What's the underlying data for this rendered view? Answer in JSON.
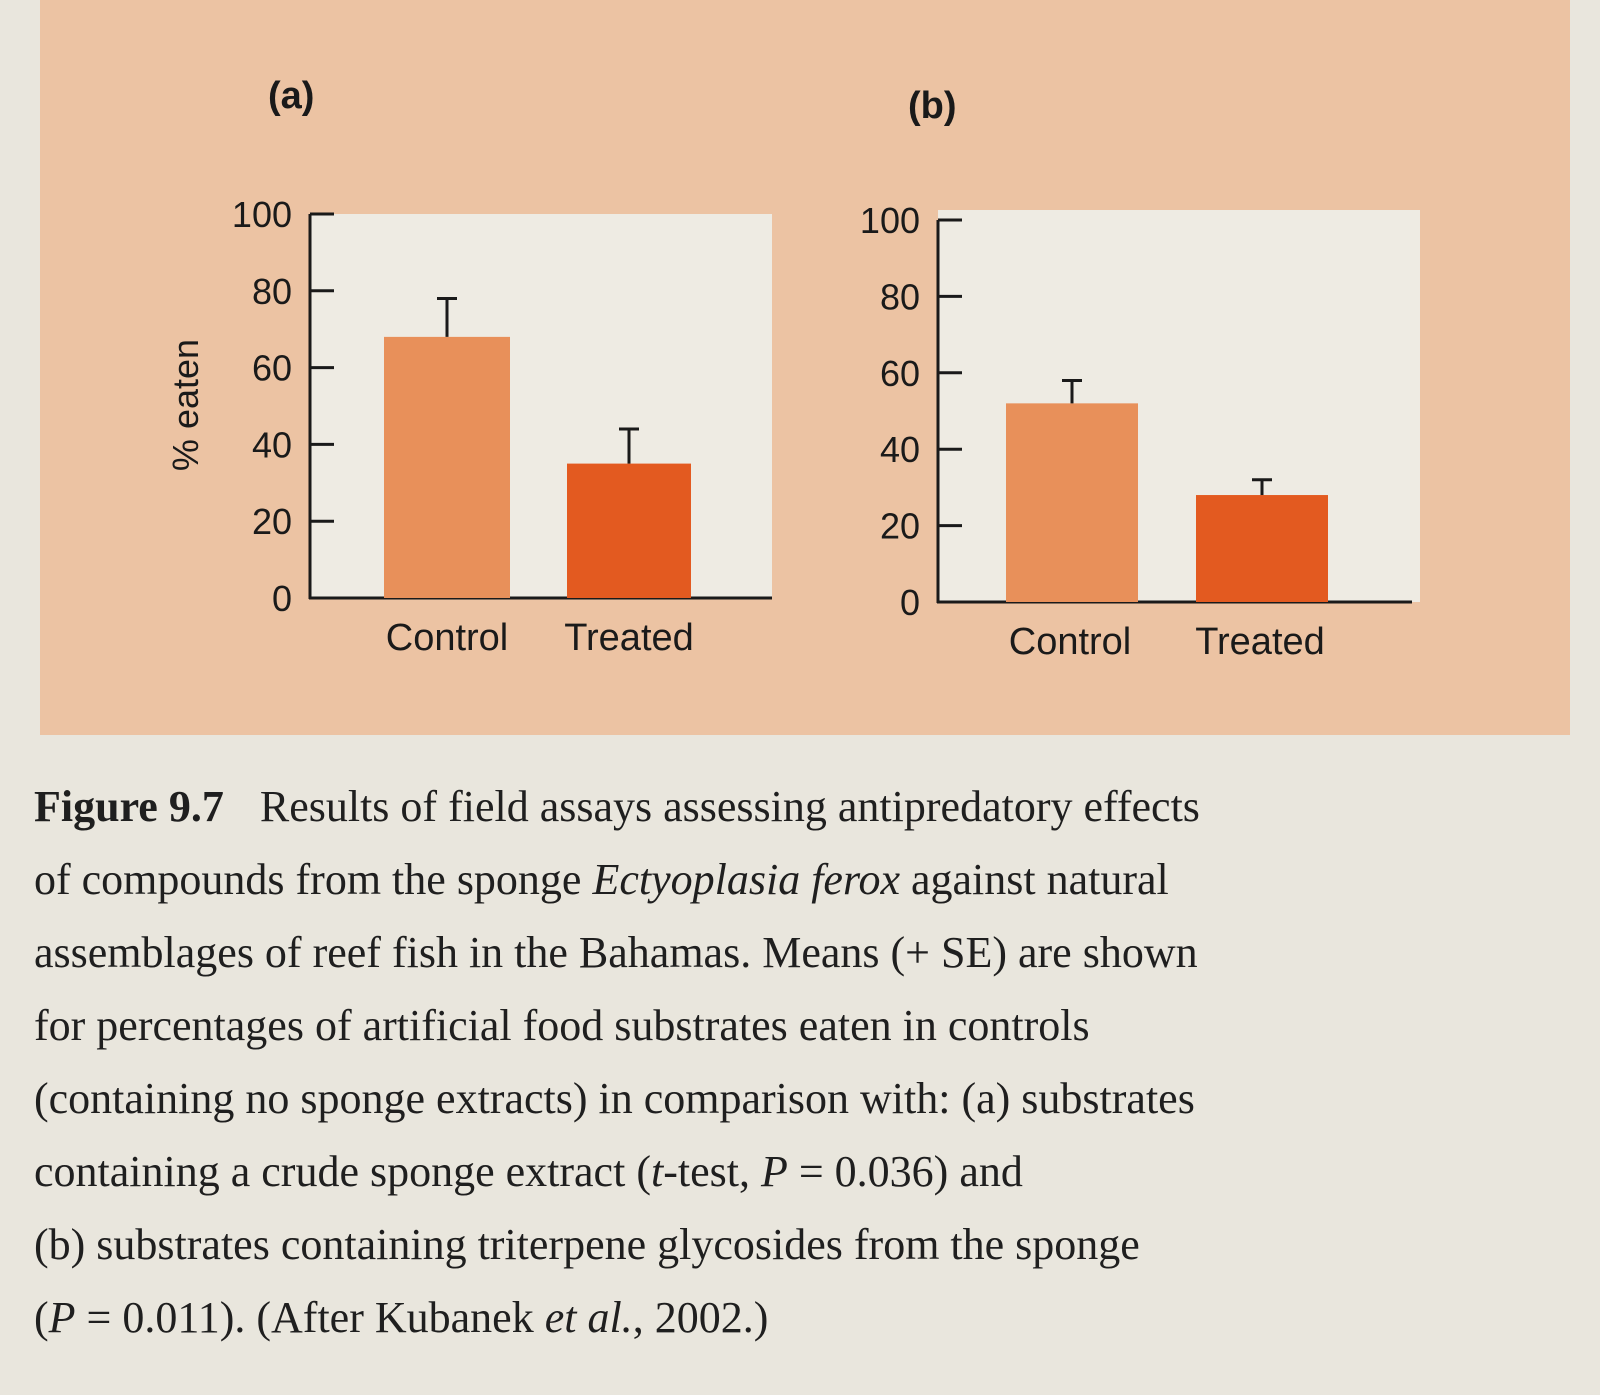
{
  "chart_data": [
    {
      "type": "bar",
      "panel": "(a)",
      "categories": [
        "Control",
        "Treated"
      ],
      "values": [
        68,
        35
      ],
      "errors": [
        10,
        9
      ],
      "ylabel": "% eaten",
      "ylim": [
        0,
        100
      ],
      "yticks": [
        "0",
        "20",
        "40",
        "60",
        "80",
        "100"
      ],
      "colors": [
        "#e8905a",
        "#e35a20"
      ]
    },
    {
      "type": "bar",
      "panel": "(b)",
      "categories": [
        "Control",
        "Treated"
      ],
      "values": [
        52,
        28
      ],
      "errors": [
        6,
        4
      ],
      "ylabel": "",
      "ylim": [
        0,
        100
      ],
      "yticks": [
        "0",
        "20",
        "40",
        "60",
        "80",
        "100"
      ],
      "colors": [
        "#e8905a",
        "#e35a20"
      ]
    }
  ],
  "caption": {
    "figure_number": "Figure 9.7",
    "line1": "Results of field assays assessing antipredatory effects",
    "line2a": "of compounds from the sponge ",
    "line2_species": "Ectyoplasia ferox",
    "line2b": " against natural",
    "line3": "assemblages of reef fish in the Bahamas. Means (+ SE) are shown",
    "line4": "for percentages of artificial food substrates eaten in controls",
    "line5": "(containing no sponge extracts) in comparison with: (a) substrates",
    "line6a": "containing a crude sponge extract (",
    "line6_t": "t",
    "line6b": "-test, ",
    "line6_p": "P",
    "line6c": " = 0.036) and",
    "line7": "(b) substrates containing triterpene glycosides from the sponge",
    "line8a": "(",
    "line8_p": "P",
    "line8b": " = 0.011). (After Kubanek ",
    "line8_etal": "et al.",
    "line8c": ", 2002.)"
  }
}
